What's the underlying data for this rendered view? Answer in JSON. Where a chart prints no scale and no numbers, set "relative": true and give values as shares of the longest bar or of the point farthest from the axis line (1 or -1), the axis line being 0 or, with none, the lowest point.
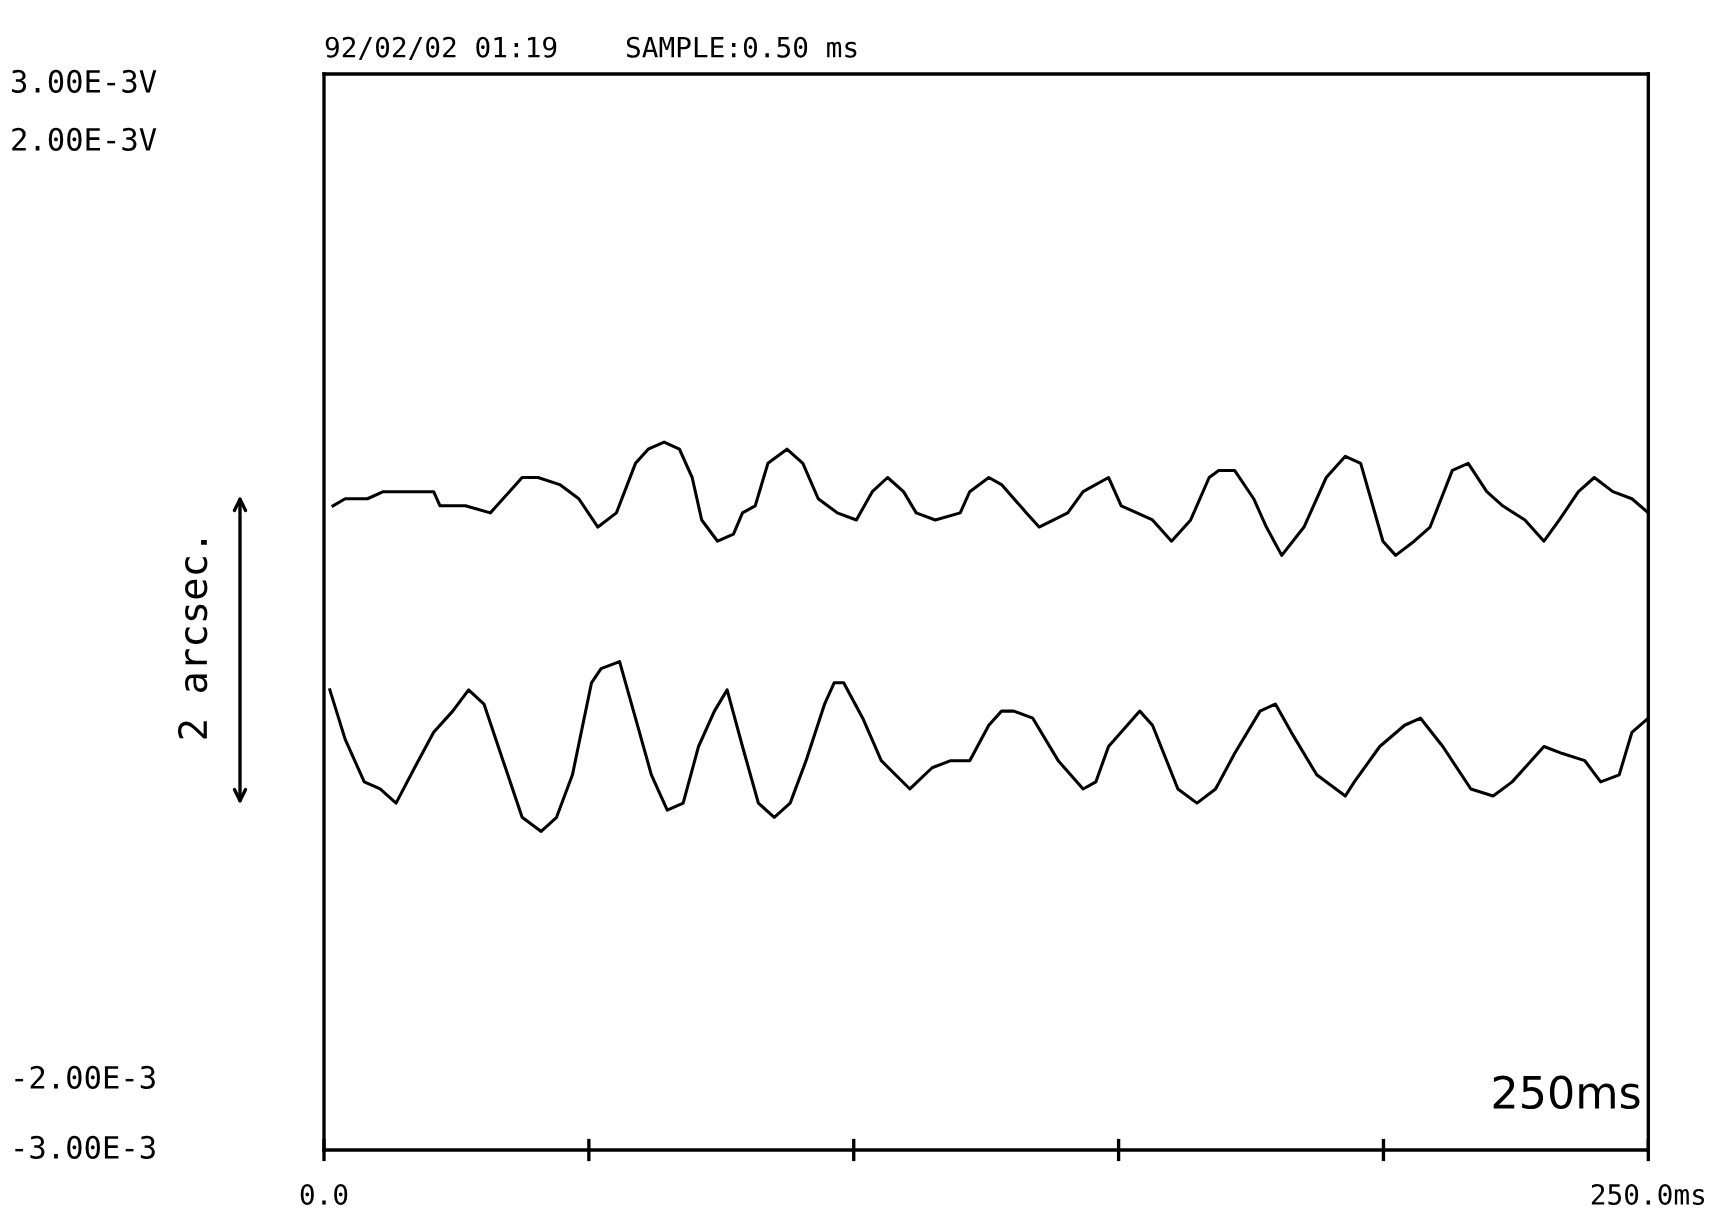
{
  "chart_data": {
    "type": "line",
    "title": "92/02/02 01:19    SAMPLE:0.50 ms",
    "relative": true,
    "grid": false,
    "tick_labels": "x",
    "marker": "none",
    "line_style": "solid",
    "xlim": [
      0,
      250
    ],
    "xticks": [
      {
        "value": 0,
        "label": "0.0"
      },
      {
        "value": 50,
        "label": null
      },
      {
        "value": 100,
        "label": null
      },
      {
        "value": 150,
        "label": null
      },
      {
        "value": 200,
        "label": null
      },
      {
        "value": 250,
        "label": "250.0ms"
      }
    ],
    "annotations": [
      "3.00E-3V",
      "2.00E-3V",
      "-2.00E-3",
      "-3.00E-3",
      "2 arcsec.",
      "250ms"
    ],
    "series": [
      {
        "color": "#000000",
        "x": [
          1.7,
          4.0,
          8.2,
          11.2,
          13.6,
          17.1,
          20.7,
          21.9,
          26.7,
          31.4,
          35.0,
          37.4,
          40.4,
          44.5,
          48.1,
          51.7,
          55.2,
          58.8,
          61.2,
          64.2,
          67.1,
          69.5,
          71.3,
          74.3,
          77.3,
          79.0,
          81.4,
          83.8,
          87.4,
          90.4,
          93.3,
          96.9,
          100.5,
          103.5,
          106.4,
          109.4,
          111.8,
          115.4,
          120.1,
          121.9,
          125.5,
          127.9,
          132.6,
          135.0,
          140.4,
          143.3,
          148.1,
          150.5,
          156.4,
          160.0,
          163.6,
          167.1,
          168.9,
          170.7,
          171.9,
          175.5,
          177.9,
          180.8,
          185.0,
          189.2,
          192.8,
          195.7,
          199.9,
          202.3,
          205.8,
          208.8,
          213.0,
          216.0,
          219.5,
          222.5,
          226.7,
          230.3,
          233.2,
          236.8,
          239.8,
          243.3,
          246.9,
          250.0
        ],
        "values": [
          0.91,
          0.92,
          0.92,
          0.93,
          0.93,
          0.93,
          0.93,
          0.91,
          0.91,
          0.9,
          0.93,
          0.95,
          0.95,
          0.94,
          0.92,
          0.88,
          0.9,
          0.97,
          0.99,
          1.0,
          0.99,
          0.95,
          0.89,
          0.86,
          0.87,
          0.9,
          0.91,
          0.97,
          0.99,
          0.97,
          0.92,
          0.9,
          0.89,
          0.93,
          0.95,
          0.93,
          0.9,
          0.89,
          0.9,
          0.93,
          0.95,
          0.94,
          0.9,
          0.88,
          0.9,
          0.93,
          0.95,
          0.91,
          0.89,
          0.86,
          0.89,
          0.95,
          0.96,
          0.96,
          0.96,
          0.92,
          0.88,
          0.84,
          0.88,
          0.95,
          0.98,
          0.97,
          0.86,
          0.84,
          0.86,
          0.88,
          0.96,
          0.97,
          0.93,
          0.91,
          0.89,
          0.86,
          0.89,
          0.93,
          0.95,
          0.93,
          0.92,
          0.9
        ]
      },
      {
        "color": "#000000",
        "x": [
          1.1,
          4.0,
          7.6,
          10.6,
          13.6,
          17.1,
          20.7,
          24.3,
          27.3,
          30.2,
          33.8,
          37.4,
          41.0,
          43.9,
          46.9,
          50.5,
          52.3,
          55.8,
          58.8,
          61.8,
          64.8,
          67.8,
          70.7,
          73.7,
          76.1,
          79.0,
          82.0,
          85.0,
          88.0,
          91.0,
          94.5,
          96.3,
          98.1,
          101.7,
          105.2,
          110.6,
          114.8,
          118.3,
          121.9,
          125.5,
          127.9,
          130.2,
          133.8,
          138.6,
          143.3,
          145.7,
          148.1,
          154.0,
          156.4,
          161.2,
          164.8,
          168.3,
          171.9,
          176.7,
          179.6,
          182.6,
          187.4,
          192.8,
          194.5,
          199.3,
          204.0,
          207.0,
          211.2,
          216.5,
          220.7,
          224.3,
          230.3,
          233.8,
          238.0,
          241.0,
          244.5,
          246.9,
          250.0
        ],
        "values": [
          0.65,
          0.58,
          0.52,
          0.51,
          0.49,
          0.54,
          0.59,
          0.62,
          0.65,
          0.63,
          0.55,
          0.47,
          0.45,
          0.47,
          0.53,
          0.66,
          0.68,
          0.69,
          0.61,
          0.53,
          0.48,
          0.49,
          0.57,
          0.62,
          0.65,
          0.57,
          0.49,
          0.47,
          0.49,
          0.55,
          0.63,
          0.66,
          0.66,
          0.61,
          0.55,
          0.51,
          0.54,
          0.55,
          0.55,
          0.6,
          0.62,
          0.62,
          0.61,
          0.55,
          0.51,
          0.52,
          0.57,
          0.62,
          0.6,
          0.51,
          0.49,
          0.51,
          0.56,
          0.62,
          0.63,
          0.59,
          0.53,
          0.5,
          0.52,
          0.57,
          0.6,
          0.61,
          0.57,
          0.51,
          0.5,
          0.52,
          0.57,
          0.56,
          0.55,
          0.52,
          0.53,
          0.59,
          0.61
        ]
      }
    ]
  }
}
